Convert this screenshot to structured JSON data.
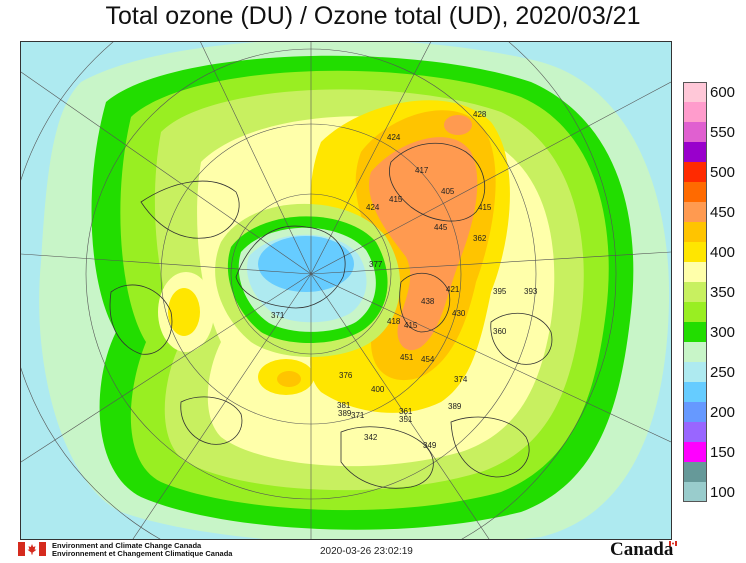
{
  "title": "Total ozone (DU) / Ozone total (UD), 2020/03/21",
  "legend": {
    "levels": [
      {
        "label": "600",
        "color": "#ffc8d8"
      },
      {
        "label": "",
        "color": "#ff9ccc"
      },
      {
        "label": "550",
        "color": "#e060d0"
      },
      {
        "label": "",
        "color": "#9900cc"
      },
      {
        "label": "500",
        "color": "#ff2a00"
      },
      {
        "label": "",
        "color": "#ff6a00"
      },
      {
        "label": "450",
        "color": "#ff9a50"
      },
      {
        "label": "",
        "color": "#ffc400"
      },
      {
        "label": "400",
        "color": "#ffe600"
      },
      {
        "label": "",
        "color": "#ffffaa"
      },
      {
        "label": "350",
        "color": "#c8f060"
      },
      {
        "label": "",
        "color": "#99ee22"
      },
      {
        "label": "300",
        "color": "#22dd00"
      },
      {
        "label": "",
        "color": "#c8f5c8"
      },
      {
        "label": "250",
        "color": "#aeeaf0"
      },
      {
        "label": "",
        "color": "#66ccff"
      },
      {
        "label": "200",
        "color": "#6699ff"
      },
      {
        "label": "",
        "color": "#9966ff"
      },
      {
        "label": "150",
        "color": "#ff00ff"
      },
      {
        "label": "",
        "color": "#669999"
      },
      {
        "label": "100",
        "color": "#99cccc"
      }
    ]
  },
  "stations": [
    {
      "label": "428"
    },
    {
      "label": "424"
    },
    {
      "label": "417"
    },
    {
      "label": "405"
    },
    {
      "label": "415"
    },
    {
      "label": "424"
    },
    {
      "label": "415"
    },
    {
      "label": "445"
    },
    {
      "label": "362"
    },
    {
      "label": "421"
    },
    {
      "label": "395"
    },
    {
      "label": "393"
    },
    {
      "label": "377"
    },
    {
      "label": "438"
    },
    {
      "label": "418"
    },
    {
      "label": "415"
    },
    {
      "label": "430"
    },
    {
      "label": "360"
    },
    {
      "label": "371"
    },
    {
      "label": "451"
    },
    {
      "label": "454"
    },
    {
      "label": "376"
    },
    {
      "label": "400"
    },
    {
      "label": "374"
    },
    {
      "label": "381"
    },
    {
      "label": "389"
    },
    {
      "label": "361"
    },
    {
      "label": "371"
    },
    {
      "label": "351"
    },
    {
      "label": "389"
    },
    {
      "label": "342"
    },
    {
      "label": "349"
    }
  ],
  "footer": {
    "agency_en": "Environment and Climate Change Canada",
    "agency_fr": "Environnement et Changement Climatique Canada",
    "timestamp": "2020-03-26 23:02:19",
    "wordmark": "Canada"
  },
  "icons": {
    "flag": "canada-flag-icon"
  }
}
